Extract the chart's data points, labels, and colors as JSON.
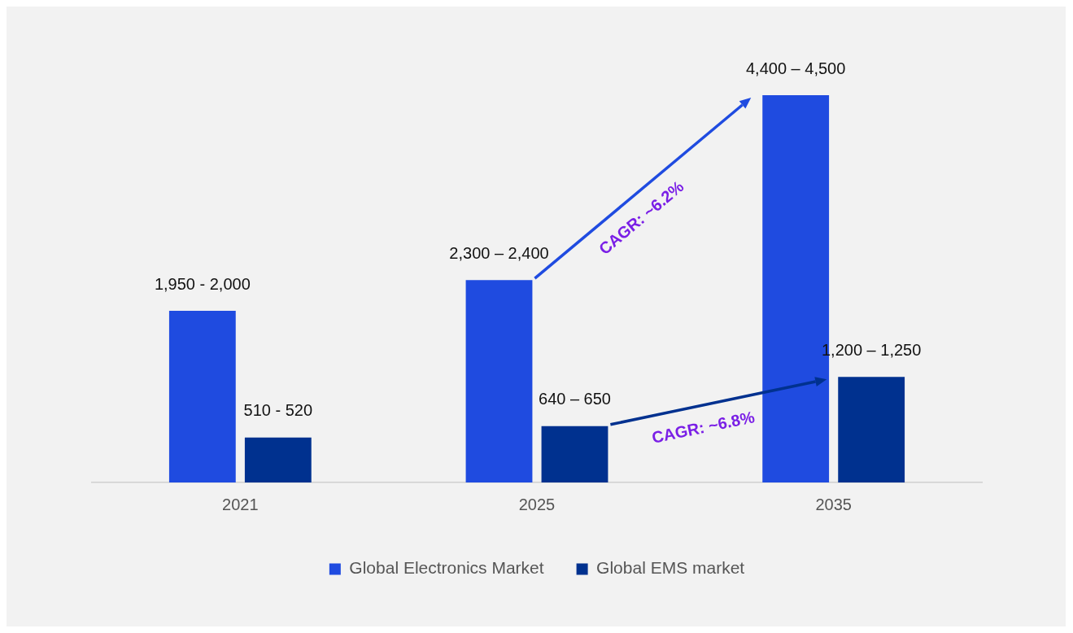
{
  "chart_data": {
    "type": "bar",
    "categories": [
      "2021",
      "2025",
      "2035"
    ],
    "series": [
      {
        "name": "Global Electronics Market",
        "color": "#1f4be0",
        "values": [
          1950,
          2300,
          4400
        ],
        "value_labels": [
          "1,950 - 2,000",
          "2,300 – 2,400",
          "4,400 – 4,500"
        ]
      },
      {
        "name": "Global EMS market",
        "color": "#00318f",
        "values": [
          510,
          640,
          1200
        ],
        "value_labels": [
          "510 - 520",
          "640 – 650",
          "1,200 – 1,250"
        ]
      }
    ],
    "annotations": [
      "CAGR: ~6.2%",
      "CAGR: ~6.8%"
    ],
    "legend": "bottom",
    "grid": false
  }
}
